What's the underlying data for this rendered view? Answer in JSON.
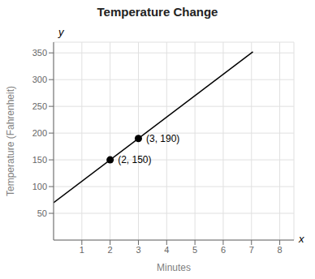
{
  "chart_data": {
    "type": "line",
    "title": "Temperature Change",
    "x_label": "Minutes",
    "y_label": "Temperature (Fahrenheit)",
    "xlim": [
      0,
      8.5
    ],
    "ylim": [
      0,
      370
    ],
    "xticks": [
      1,
      2,
      3,
      4,
      5,
      6,
      7,
      8
    ],
    "yticks": [
      50,
      100,
      150,
      200,
      250,
      300,
      350
    ],
    "grid": true,
    "series": [
      {
        "type": "line",
        "color": "#000000",
        "line_style": "solid",
        "x": [
          0,
          7.05
        ],
        "values": [
          70,
          352
        ]
      },
      {
        "type": "scatter",
        "color": "#000000",
        "marker": "circle",
        "x": [
          2,
          3
        ],
        "values": [
          150,
          190
        ],
        "data_labels": true,
        "value_labels": [
          "(2, 150)",
          "(3, 190)"
        ]
      }
    ],
    "annotations": [
      {
        "text": "x",
        "axis": "x"
      },
      {
        "text": "y",
        "axis": "y"
      }
    ]
  }
}
